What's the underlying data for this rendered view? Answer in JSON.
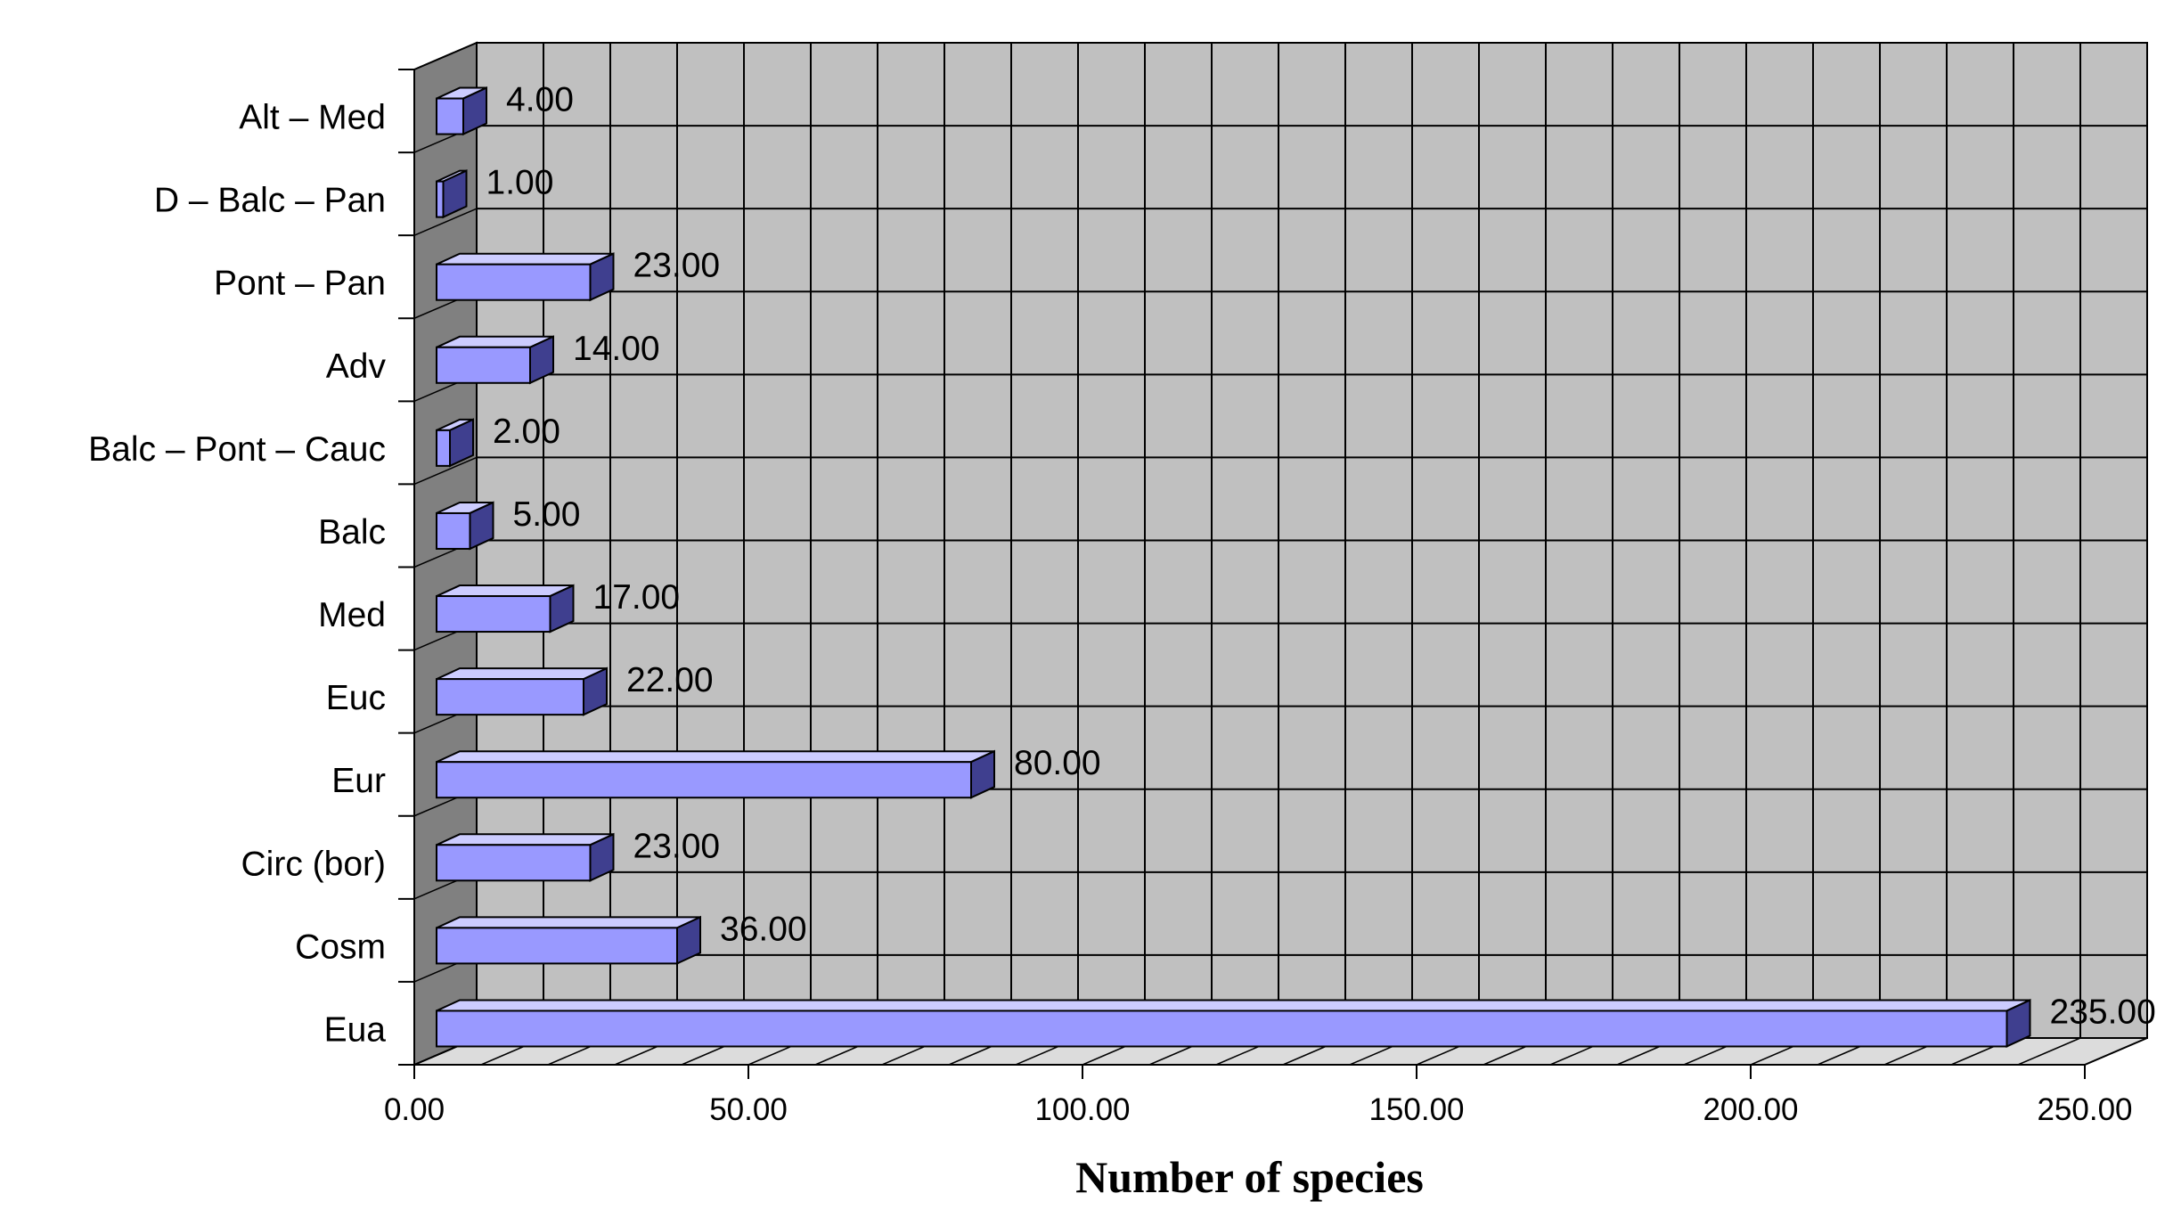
{
  "chart_data": {
    "type": "bar",
    "orientation": "horizontal",
    "three_d": true,
    "categories": [
      "Eua",
      "Cosm",
      "Circ (bor)",
      "Eur",
      "Euc",
      "Med",
      "Balc",
      "Balc – Pont – Cauc",
      "Adv",
      "Pont – Pan",
      "D – Balc – Pan",
      "Alt – Med"
    ],
    "values": [
      235,
      36,
      23,
      80,
      22,
      17,
      5,
      2,
      14,
      23,
      1,
      4
    ],
    "value_labels": [
      "235.00",
      "36.00",
      "23.00",
      "80.00",
      "22.00",
      "17.00",
      "5.00",
      "2.00",
      "14.00",
      "23.00",
      "1.00",
      "4.00"
    ],
    "xlabel": "Number of species",
    "ylabel": "",
    "xlim": [
      0,
      250
    ],
    "ticks": [
      0,
      50,
      100,
      150,
      200,
      250
    ],
    "tick_labels": [
      "0.00",
      "50.00",
      "100.00",
      "150.00",
      "200.00",
      "250.00"
    ],
    "grid": true,
    "legend": "none",
    "colors": {
      "bar_front": "#9999ff",
      "bar_top": "#ccccff",
      "bar_side": "#3f3f8f",
      "back_wall": "#c0c0c0",
      "floor": "#dcdcdc",
      "side_wall": "#808080",
      "grid_line": "#000000"
    }
  }
}
